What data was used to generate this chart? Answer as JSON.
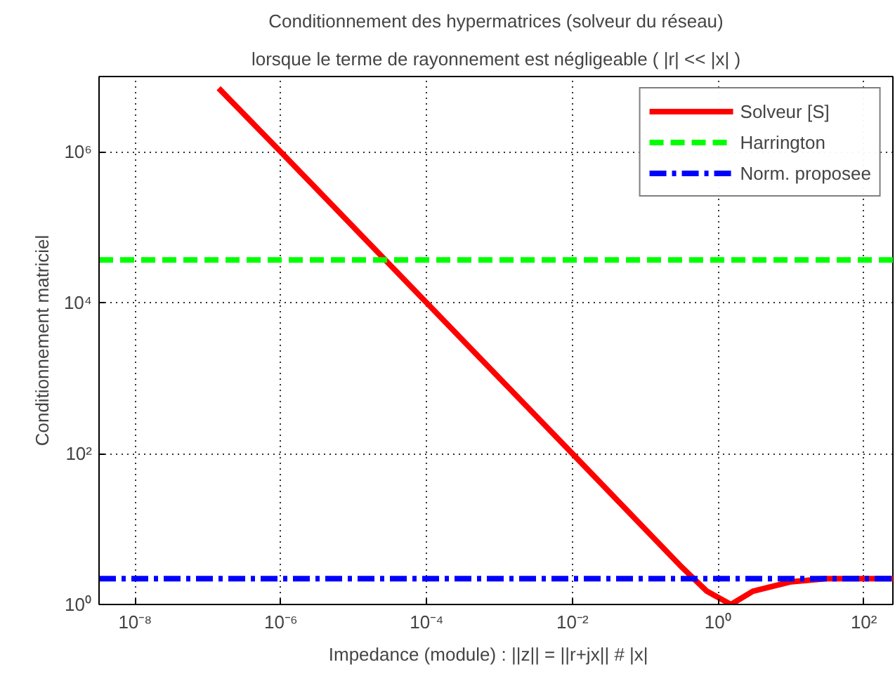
{
  "chart_data": {
    "type": "line",
    "title": "Conditionnement des hypermatrices (solveur du réseau)",
    "subtitle": "lorsque le terme de rayonnement est négligeable ( |r| << |x| )",
    "xlabel": "Impedance (module) :    ||z|| = ||r+jx|| # |x|",
    "ylabel": "Conditionnement matriciel",
    "log": "xy",
    "grid": true,
    "legend": "top right",
    "marker": "none",
    "xlim": [
      3.2e-09,
      250
    ],
    "ylim": [
      1,
      10000000.0
    ],
    "xticks": [
      {
        "value": 1e-08,
        "label": "10⁻⁸"
      },
      {
        "value": 1e-06,
        "label": "10⁻⁶"
      },
      {
        "value": 0.0001,
        "label": "10⁻⁴"
      },
      {
        "value": 0.01,
        "label": "10⁻²"
      },
      {
        "value": 1,
        "label": "10⁰"
      },
      {
        "value": 100,
        "label": "10²"
      }
    ],
    "yticks": [
      {
        "value": 1,
        "label": "10⁰"
      },
      {
        "value": 100,
        "label": "10²"
      },
      {
        "value": 10000,
        "label": "10⁴"
      },
      {
        "value": 1000000,
        "label": "10⁶"
      }
    ],
    "series": [
      {
        "name": "Solveur [S]",
        "color": "#ff0000",
        "line_style": "solid",
        "x": [
          1.4e-07,
          1e-06,
          0.0001,
          0.01,
          0.3,
          0.7,
          1.5,
          3,
          10,
          30,
          250
        ],
        "values": [
          7000000.0,
          1000000.0,
          10000.0,
          100,
          3.3,
          1.5,
          1.0,
          1.5,
          2.0,
          2.2,
          2.2
        ]
      },
      {
        "name": "Harrington",
        "color": "#00ff00",
        "line_style": "dashed",
        "x": [
          3.2e-09,
          250
        ],
        "values": [
          37000,
          37000
        ]
      },
      {
        "name": "Norm. proposee",
        "color": "#0000ff",
        "line_style": "dashdot",
        "x": [
          3.2e-09,
          250
        ],
        "values": [
          2.2,
          2.2
        ]
      }
    ]
  }
}
